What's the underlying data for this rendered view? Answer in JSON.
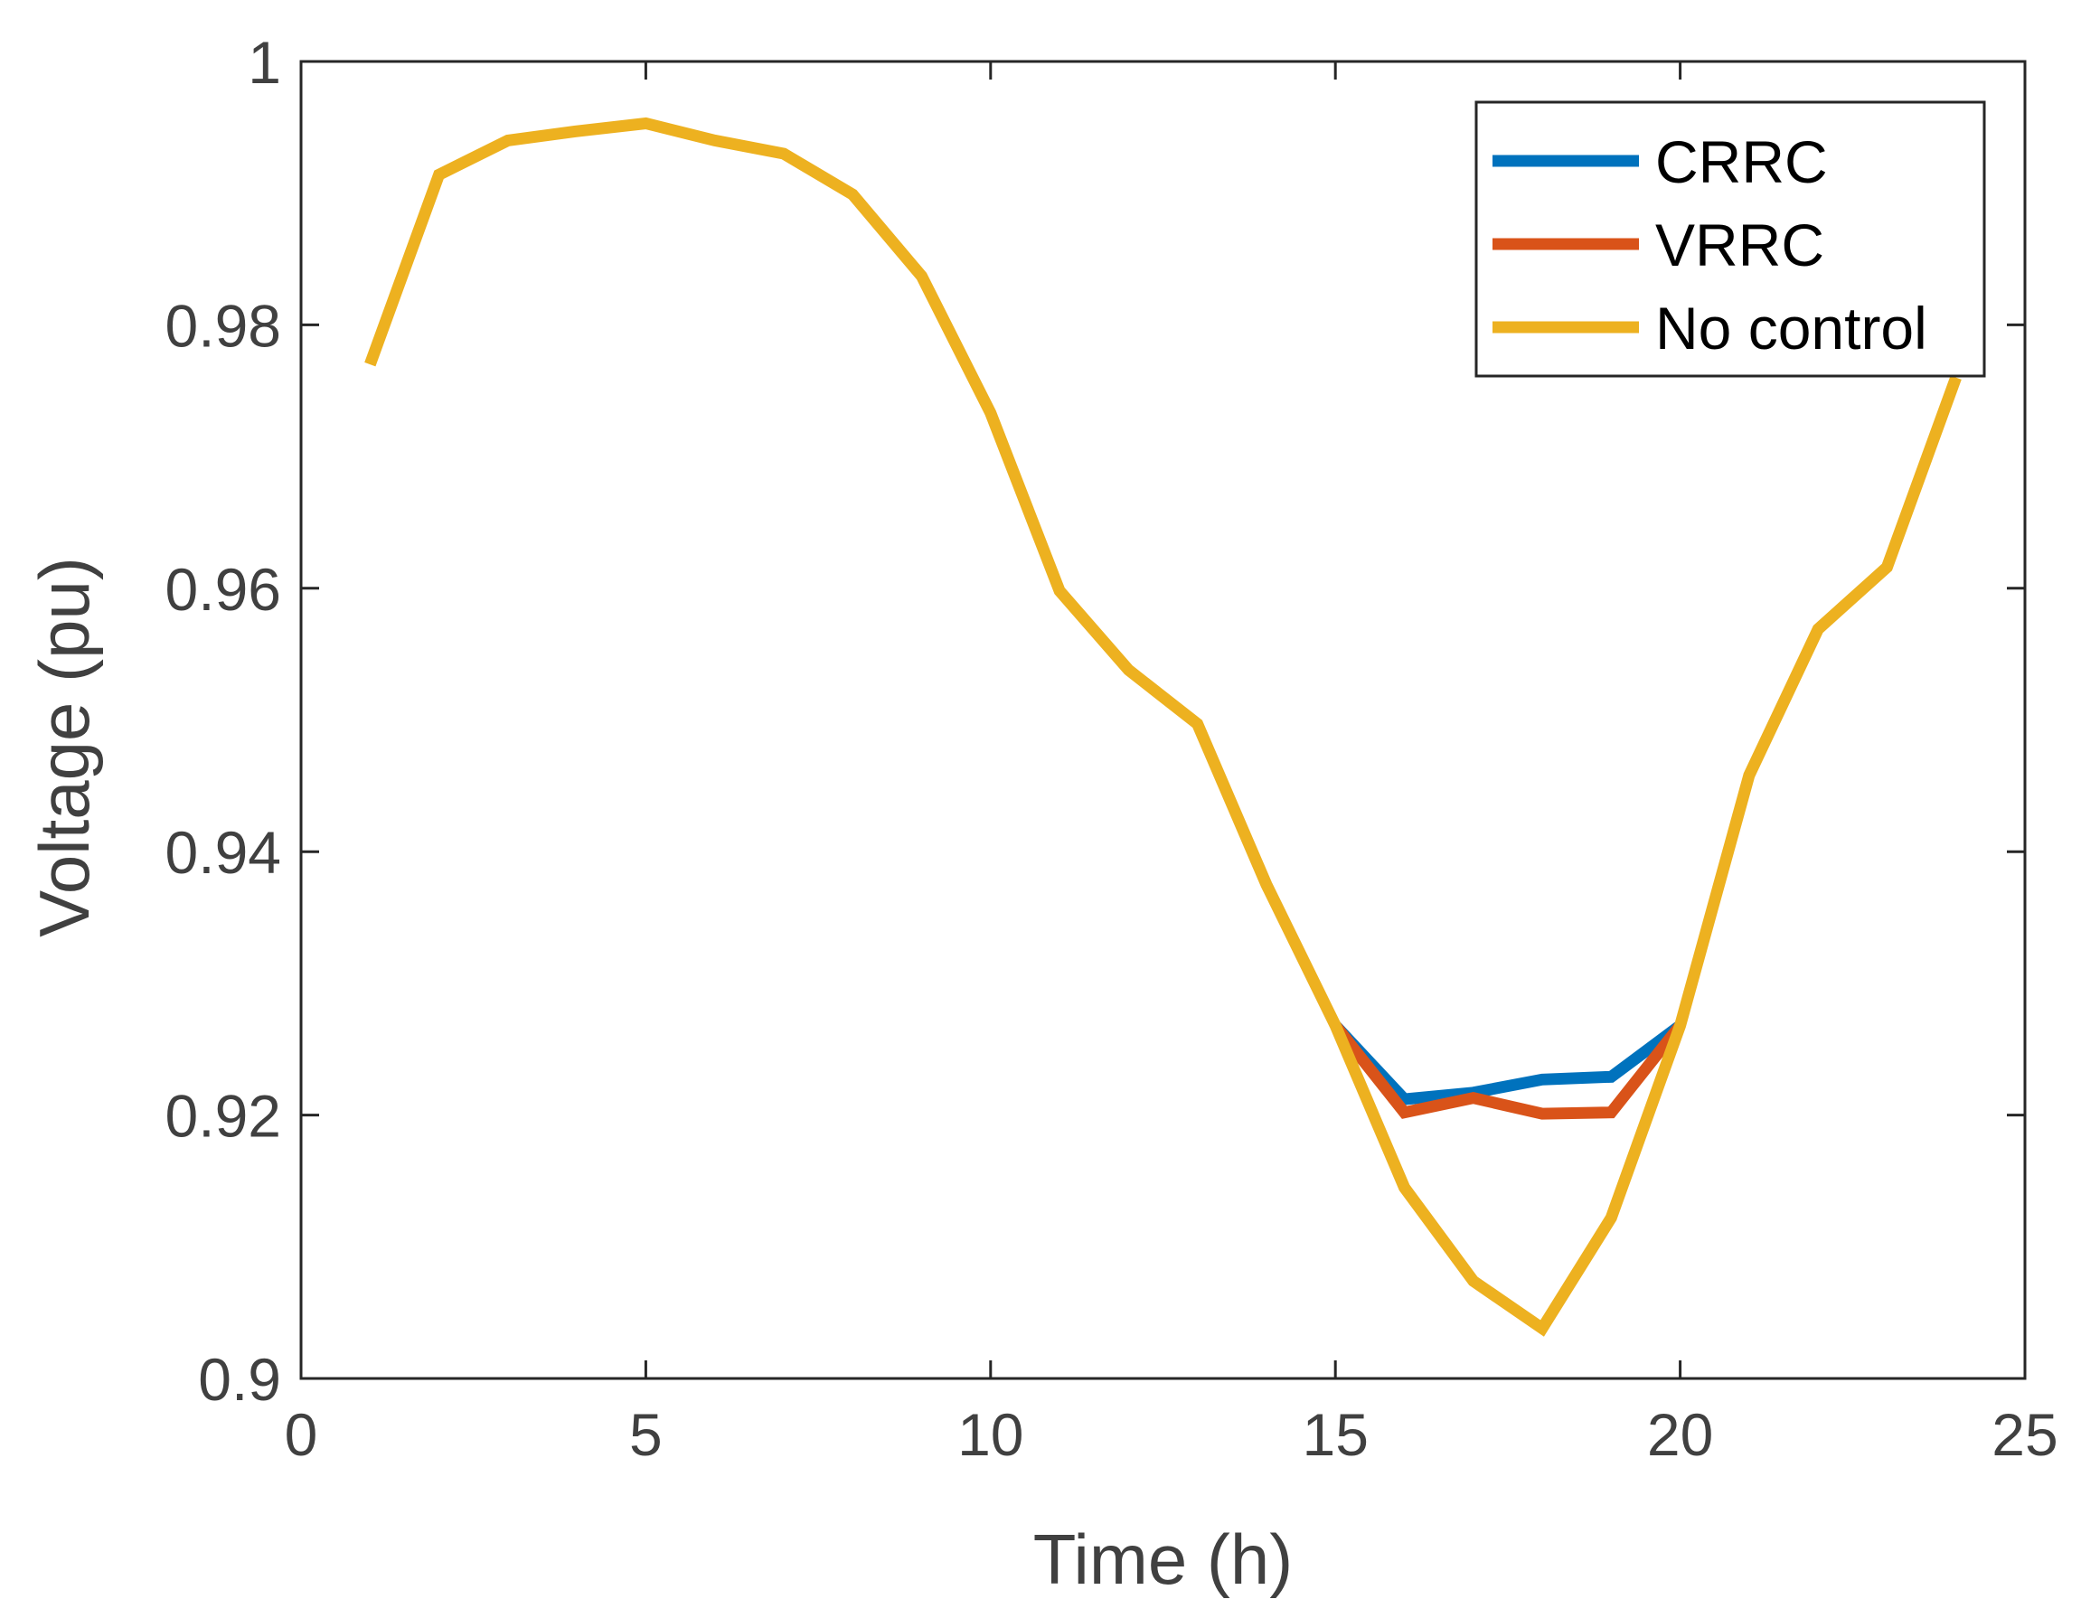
{
  "chart_data": {
    "type": "line",
    "title": "",
    "xlabel": "Time (h)",
    "ylabel": "Voltage (pu)",
    "xlim": [
      0,
      25
    ],
    "ylim": [
      0.9,
      1.0
    ],
    "xticks": [
      0,
      5,
      10,
      15,
      20,
      25
    ],
    "xtick_labels": [
      "0",
      "5",
      "10",
      "15",
      "20",
      "25"
    ],
    "yticks": [
      0.9,
      0.92,
      0.94,
      0.96,
      0.98,
      1.0
    ],
    "ytick_labels": [
      "0.9",
      "0.92",
      "0.94",
      "0.96",
      "0.98",
      "1"
    ],
    "grid": false,
    "legend_position": "top-right",
    "series": [
      {
        "name": "CRRC",
        "color": "#0072BD",
        "x": [
          15,
          16,
          17,
          18,
          19,
          20
        ],
        "y": [
          0.9268,
          0.9212,
          0.9217,
          0.9227,
          0.9229,
          0.9268
        ]
      },
      {
        "name": "VRRC",
        "color": "#D95319",
        "x": [
          15,
          16,
          17,
          18,
          19,
          20
        ],
        "y": [
          0.9268,
          0.9202,
          0.9213,
          0.9201,
          0.9202,
          0.9268
        ]
      },
      {
        "name": "No control",
        "color": "#EDB120",
        "x": [
          1,
          2,
          3,
          4,
          5,
          6,
          7,
          8,
          9,
          10,
          11,
          12,
          13,
          14,
          15,
          16,
          17,
          18,
          19,
          20,
          21,
          22,
          23,
          24
        ],
        "y": [
          0.977,
          0.9914,
          0.994,
          0.9947,
          0.9953,
          0.994,
          0.993,
          0.9899,
          0.9837,
          0.9733,
          0.9598,
          0.9538,
          0.9497,
          0.9375,
          0.9268,
          0.9145,
          0.9074,
          0.9038,
          0.9122,
          0.9268,
          0.9458,
          0.9569,
          0.9616,
          0.976
        ]
      }
    ]
  }
}
